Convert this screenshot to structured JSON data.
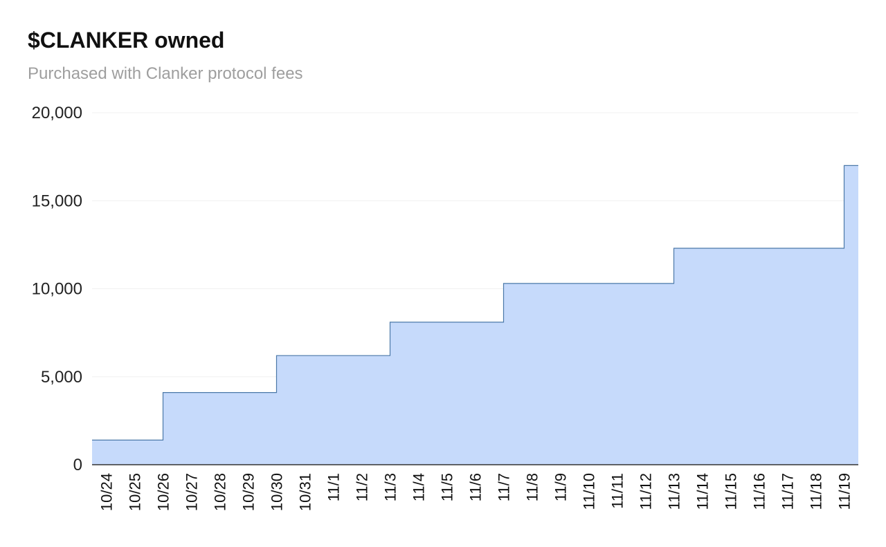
{
  "chart_data": {
    "type": "area",
    "step": true,
    "title": "$CLANKER owned",
    "subtitle": "Purchased with Clanker protocol fees",
    "xlabel": "",
    "ylabel": "",
    "ylim": [
      0,
      20000
    ],
    "yticks": [
      0,
      5000,
      10000,
      15000,
      20000
    ],
    "ytick_labels": [
      "0",
      "5,000",
      "10,000",
      "15,000",
      "20,000"
    ],
    "grid": true,
    "legend": "none",
    "fill_color": "#c6dafb",
    "line_color": "#4a78a8",
    "categories": [
      "10/24",
      "10/25",
      "10/26",
      "10/27",
      "10/28",
      "10/29",
      "10/30",
      "10/31",
      "11/1",
      "11/2",
      "11/3",
      "11/4",
      "11/5",
      "11/6",
      "11/7",
      "11/8",
      "11/9",
      "11/10",
      "11/11",
      "11/12",
      "11/13",
      "11/14",
      "11/15",
      "11/16",
      "11/17",
      "11/18",
      "11/19"
    ],
    "values": [
      1400,
      1400,
      4100,
      4100,
      4100,
      4100,
      6200,
      6200,
      6200,
      6200,
      8100,
      8100,
      8100,
      8100,
      10300,
      10300,
      10300,
      10300,
      10300,
      10300,
      12300,
      12300,
      12300,
      12300,
      12300,
      12300,
      17000
    ]
  }
}
